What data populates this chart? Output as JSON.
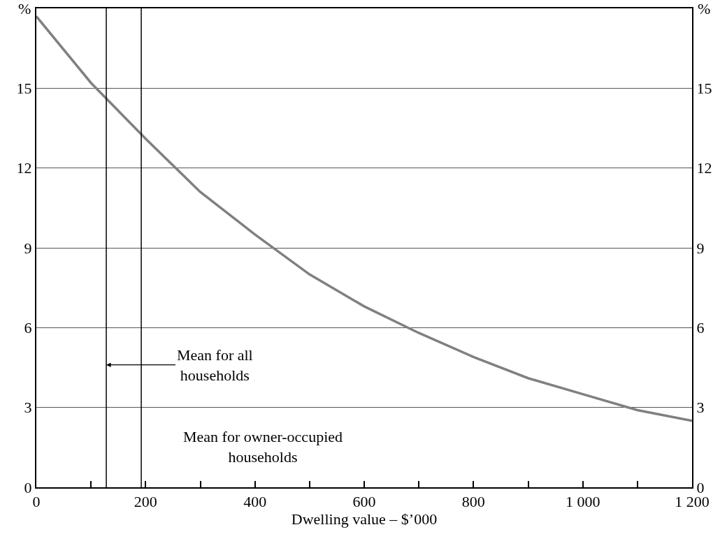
{
  "chart_data": {
    "type": "line",
    "xlabel": "Dwelling value – $’000",
    "ylabel": "%",
    "y2label": "%",
    "x": [
      0,
      100,
      200,
      300,
      400,
      500,
      600,
      700,
      800,
      900,
      1000,
      1100,
      1200
    ],
    "series": [
      {
        "color": "#808080",
        "values": [
          17.7,
          15.2,
          13.1,
          11.1,
          9.5,
          8.0,
          6.8,
          5.8,
          4.9,
          4.1,
          3.5,
          2.9,
          2.5
        ]
      }
    ],
    "xlim": [
      0,
      1200
    ],
    "xticks": [
      0,
      {
        "value": 100,
        "label": null
      },
      200,
      {
        "value": 300,
        "label": null
      },
      400,
      {
        "value": 500,
        "label": null
      },
      600,
      {
        "value": 700,
        "label": null
      },
      800,
      {
        "value": 900,
        "label": null
      },
      {
        "value": 1000,
        "label": "1 000"
      },
      {
        "value": 1100,
        "label": null
      },
      {
        "value": 1200,
        "label": "1 200"
      }
    ],
    "ylim": [
      0,
      18
    ],
    "yticks": [
      0,
      3,
      6,
      9,
      12,
      15
    ],
    "y2lim": [
      0,
      18
    ],
    "y2ticks": [
      0,
      3,
      6,
      9,
      12,
      15
    ],
    "ref_lines": [
      {
        "axis": "x",
        "value": 128,
        "color": "#000000"
      },
      {
        "axis": "x",
        "value": 192,
        "color": "#000000"
      }
    ],
    "annotations": [
      {
        "text": "Mean for all\nhouseholds",
        "x": 128,
        "y": 4.6
      },
      "Mean for owner-occupied\nhouseholds"
    ],
    "grid": "y",
    "marker": "none",
    "line_style": "solid"
  }
}
